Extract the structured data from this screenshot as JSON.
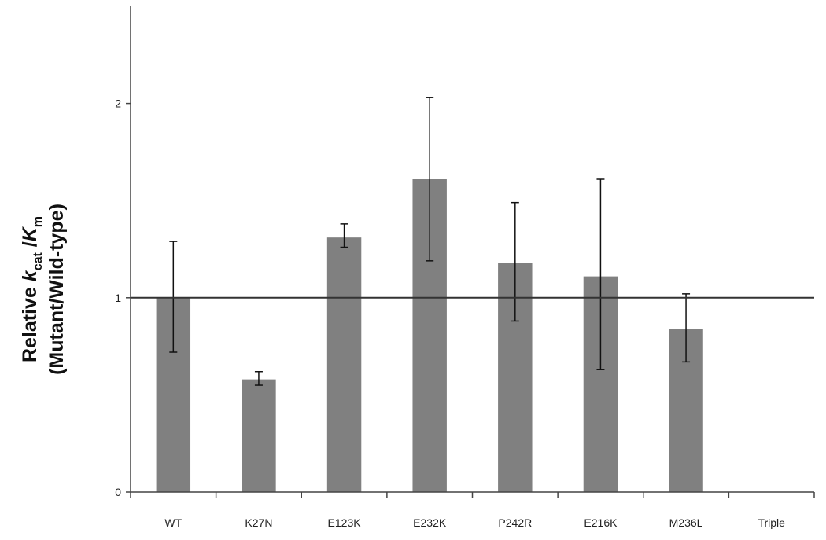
{
  "chart_data": {
    "type": "bar",
    "categories": [
      "WT",
      "K27N",
      "E123K",
      "E232K",
      "P242R",
      "E216K",
      "M236L",
      "Triple"
    ],
    "series": [
      {
        "values": [
          1.0,
          0.58,
          1.31,
          1.61,
          1.18,
          1.11,
          0.84,
          null
        ],
        "error_low": [
          0.72,
          0.55,
          1.26,
          1.19,
          0.88,
          0.63,
          0.67,
          null
        ],
        "error_high": [
          1.29,
          0.62,
          1.38,
          2.03,
          1.49,
          1.61,
          1.02,
          null
        ]
      }
    ],
    "ylabel_line1_prefix": "Relative ",
    "ylabel_k": "k",
    "ylabel_cat": "cat",
    "ylabel_slash": " /",
    "ylabel_K": "K",
    "ylabel_m": "m",
    "ylabel_line2": "(Mutant/Wild-type)",
    "ylim": [
      0,
      2.5
    ],
    "yticks": [
      "0",
      "1",
      "2"
    ],
    "ytick_values": [
      0,
      1,
      2
    ],
    "reference_line": 1,
    "grid": false,
    "bar_color": "#808080"
  }
}
